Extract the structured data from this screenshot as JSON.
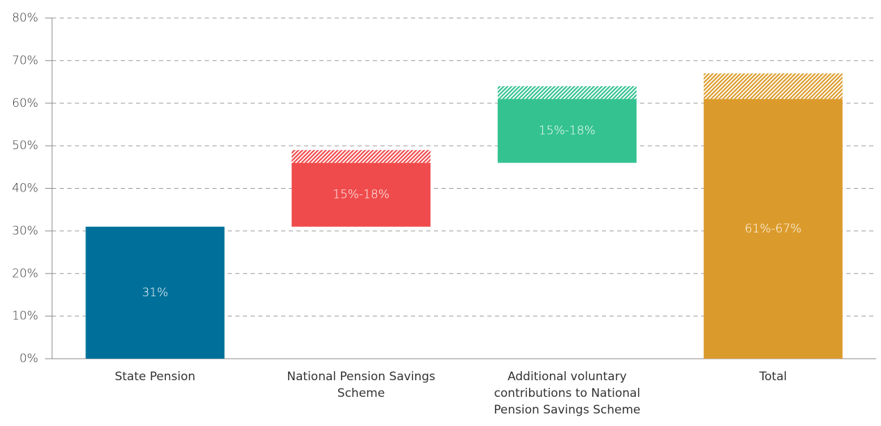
{
  "chart_data": {
    "type": "waterfall",
    "categories": [
      "State Pension",
      "National Pension Savings Scheme",
      "Additional voluntary contributions to National Pension Savings Scheme",
      "Total"
    ],
    "values": [
      31,
      15,
      15,
      61
    ],
    "upper_values": [
      0,
      3,
      3,
      6
    ],
    "value_labels": [
      "31%",
      "15%-18%",
      "15%-18%",
      "61%-67%"
    ],
    "is_total": [
      false,
      false,
      false,
      true
    ],
    "colors": [
      "#00709a",
      "#f04b4c",
      "#34c291",
      "#db9b2c"
    ],
    "ylim": [
      0,
      80
    ],
    "yticks": [
      {
        "value": 0,
        "label": "0%"
      },
      {
        "value": 10,
        "label": "10%"
      },
      {
        "value": 20,
        "label": "20%"
      },
      {
        "value": 30,
        "label": "30%"
      },
      {
        "value": 40,
        "label": "40%"
      },
      {
        "value": 50,
        "label": "50%"
      },
      {
        "value": 60,
        "label": "60%"
      },
      {
        "value": 70,
        "label": "70%"
      },
      {
        "value": 80,
        "label": "80%"
      }
    ],
    "grid": true
  }
}
